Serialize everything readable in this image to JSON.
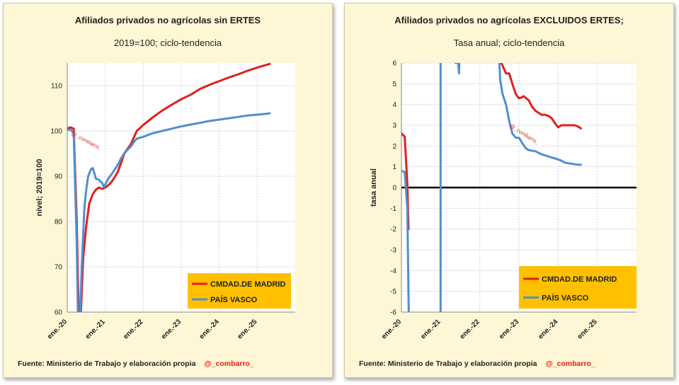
{
  "colors": {
    "madrid": "#e0201a",
    "pais_vasco": "#4f8fd0",
    "legend_bg": "#ffc000",
    "panel_bg": "#fef6d5",
    "grid": "#e6e6e6"
  },
  "source_text": "Fuente: Ministerio de Trabajo y elaboración propia",
  "source_handle": "@_combarro_",
  "chart_data": [
    {
      "type": "line",
      "title": "Afiliados privados no agrícolas sin ERTES",
      "subtitle": "2019=100; ciclo-tendencia",
      "xlabel": "",
      "ylabel": "nivel;  2019=100",
      "xlim": [
        2020.0,
        2026.0
      ],
      "ylim": [
        60,
        115
      ],
      "yticks": [
        60,
        70,
        80,
        90,
        100,
        110
      ],
      "xticks": [
        {
          "label": "ene.-20",
          "x": 2020.0
        },
        {
          "label": "ene.-21",
          "x": 2021.0
        },
        {
          "label": "ene.-22",
          "x": 2022.0
        },
        {
          "label": "ene.-23",
          "x": 2023.0
        },
        {
          "label": "ene.-24",
          "x": 2024.0
        },
        {
          "label": "ene.-25",
          "x": 2025.0
        }
      ],
      "watermark": "@_combarro_",
      "legend_position": "bottom-right",
      "series": [
        {
          "name": "CMDAD.DE MADRID",
          "color": "#e0201a",
          "points": [
            [
              2020.0,
              100.5
            ],
            [
              2020.083,
              100.8
            ],
            [
              2020.17,
              100.5
            ],
            [
              2020.25,
              80
            ],
            [
              2020.3,
              60
            ],
            [
              2020.33,
              55
            ],
            [
              2020.36,
              60
            ],
            [
              2020.42,
              72
            ],
            [
              2020.5,
              79
            ],
            [
              2020.58,
              84
            ],
            [
              2020.67,
              86
            ],
            [
              2020.75,
              87
            ],
            [
              2020.83,
              87.5
            ],
            [
              2020.92,
              87.2
            ],
            [
              2021.0,
              87.5
            ],
            [
              2021.08,
              88
            ],
            [
              2021.17,
              88.8
            ],
            [
              2021.25,
              89.8
            ],
            [
              2021.33,
              91
            ],
            [
              2021.42,
              93
            ],
            [
              2021.5,
              95
            ],
            [
              2021.58,
              96
            ],
            [
              2021.67,
              97
            ],
            [
              2021.75,
              98.5
            ],
            [
              2021.83,
              100
            ],
            [
              2022.0,
              101.3
            ],
            [
              2022.25,
              103
            ],
            [
              2022.5,
              104.5
            ],
            [
              2022.75,
              105.8
            ],
            [
              2023.0,
              107
            ],
            [
              2023.25,
              108
            ],
            [
              2023.5,
              109.3
            ],
            [
              2023.75,
              110.2
            ],
            [
              2024.0,
              111
            ],
            [
              2024.25,
              111.8
            ],
            [
              2024.5,
              112.5
            ],
            [
              2024.75,
              113.3
            ],
            [
              2025.0,
              114
            ],
            [
              2025.25,
              114.6
            ],
            [
              2025.33,
              114.8
            ]
          ]
        },
        {
          "name": "PAÍS VASCO",
          "color": "#4f8fd0",
          "points": [
            [
              2020.0,
              100.2
            ],
            [
              2020.083,
              100.3
            ],
            [
              2020.17,
              99.5
            ],
            [
              2020.25,
              75
            ],
            [
              2020.28,
              60
            ],
            [
              2020.3,
              55
            ],
            [
              2020.33,
              56
            ],
            [
              2020.38,
              70
            ],
            [
              2020.45,
              83
            ],
            [
              2020.5,
              87
            ],
            [
              2020.55,
              90
            ],
            [
              2020.62,
              91.5
            ],
            [
              2020.67,
              91.8
            ],
            [
              2020.72,
              90.5
            ],
            [
              2020.75,
              89.5
            ],
            [
              2020.83,
              89.2
            ],
            [
              2020.92,
              88.5
            ],
            [
              2020.96,
              87.6
            ],
            [
              2021.0,
              88.2
            ],
            [
              2021.08,
              89.5
            ],
            [
              2021.17,
              90.5
            ],
            [
              2021.25,
              91.5
            ],
            [
              2021.33,
              92.5
            ],
            [
              2021.42,
              94
            ],
            [
              2021.5,
              95
            ],
            [
              2021.58,
              95.8
            ],
            [
              2021.67,
              96.5
            ],
            [
              2021.75,
              97.5
            ],
            [
              2021.83,
              98.3
            ],
            [
              2022.0,
              98.7
            ],
            [
              2022.25,
              99.5
            ],
            [
              2022.5,
              100
            ],
            [
              2022.75,
              100.5
            ],
            [
              2023.0,
              101
            ],
            [
              2023.25,
              101.4
            ],
            [
              2023.5,
              101.8
            ],
            [
              2023.75,
              102.2
            ],
            [
              2024.0,
              102.5
            ],
            [
              2024.25,
              102.8
            ],
            [
              2024.5,
              103.1
            ],
            [
              2024.75,
              103.4
            ],
            [
              2025.0,
              103.6
            ],
            [
              2025.25,
              103.8
            ],
            [
              2025.33,
              103.9
            ]
          ]
        }
      ]
    },
    {
      "type": "line",
      "title": "Afiliados privados no agrícolas EXCLUIDOS ERTES;",
      "subtitle": "Tasa anual; ciclo-tendencia",
      "xlabel": "",
      "ylabel": "tasa anual",
      "xlim": [
        2020.0,
        2026.0
      ],
      "ylim": [
        -6,
        6
      ],
      "yticks": [
        -6,
        -5,
        -4,
        -3,
        -2,
        -1,
        0,
        1,
        2,
        3,
        4,
        5,
        6
      ],
      "xticks": [
        {
          "label": "ene.-20",
          "x": 2020.0
        },
        {
          "label": "ene.-21",
          "x": 2021.0
        },
        {
          "label": "ene.-22",
          "x": 2022.0
        },
        {
          "label": "ene.-23",
          "x": 2023.0
        },
        {
          "label": "ene.-24",
          "x": 2024.0
        },
        {
          "label": "ene.-25",
          "x": 2025.0
        }
      ],
      "watermark": "@_combarro_",
      "legend_position": "bottom-right",
      "series": [
        {
          "name": "CMDAD.DE MADRID",
          "color": "#e0201a",
          "segments": [
            [
              [
                2020.0,
                2.6
              ],
              [
                2020.083,
                2.45
              ],
              [
                2020.15,
                0.2
              ],
              [
                2020.18,
                -2
              ]
            ],
            [
              [
                2022.48,
                8
              ],
              [
                2022.55,
                6
              ],
              [
                2022.67,
                5.5
              ],
              [
                2022.75,
                5.5
              ],
              [
                2022.83,
                5
              ],
              [
                2022.92,
                4.5
              ],
              [
                2023.0,
                4.3
              ],
              [
                2023.08,
                4.35
              ],
              [
                2023.12,
                4.4
              ],
              [
                2023.25,
                4.2
              ],
              [
                2023.33,
                3.9
              ],
              [
                2023.42,
                3.7
              ],
              [
                2023.5,
                3.6
              ],
              [
                2023.58,
                3.5
              ],
              [
                2023.67,
                3.5
              ],
              [
                2023.75,
                3.45
              ],
              [
                2023.83,
                3.35
              ],
              [
                2023.92,
                3.1
              ],
              [
                2024.0,
                2.9
              ],
              [
                2024.08,
                3.0
              ],
              [
                2024.25,
                3.0
              ],
              [
                2024.42,
                3.0
              ],
              [
                2024.5,
                2.95
              ],
              [
                2024.58,
                2.85
              ]
            ]
          ]
        },
        {
          "name": "PAÍS VASCO",
          "color": "#4f8fd0",
          "segments": [
            [
              [
                2020.0,
                0.8
              ],
              [
                2020.083,
                0.75
              ],
              [
                2020.15,
                -1
              ],
              [
                2020.2,
                -8
              ]
            ],
            [
              [
                2021.0,
                -8
              ],
              [
                2021.0,
                8
              ]
            ],
            [
              [
                2021.36,
                8
              ],
              [
                2021.38,
                6
              ],
              [
                2021.45,
                6
              ],
              [
                2021.47,
                5.5
              ],
              [
                2021.5,
                8
              ]
            ],
            [
              [
                2022.48,
                8
              ],
              [
                2022.5,
                6
              ],
              [
                2022.52,
                5.2
              ],
              [
                2022.58,
                4.5
              ],
              [
                2022.67,
                4
              ],
              [
                2022.75,
                3.2
              ],
              [
                2022.83,
                2.6
              ],
              [
                2022.92,
                2.4
              ],
              [
                2023.0,
                2.4
              ],
              [
                2023.08,
                2.15
              ],
              [
                2023.17,
                1.9
              ],
              [
                2023.25,
                1.8
              ],
              [
                2023.42,
                1.75
              ],
              [
                2023.58,
                1.6
              ],
              [
                2023.75,
                1.5
              ],
              [
                2023.83,
                1.45
              ],
              [
                2023.92,
                1.4
              ],
              [
                2024.0,
                1.35
              ],
              [
                2024.08,
                1.3
              ],
              [
                2024.17,
                1.2
              ],
              [
                2024.33,
                1.15
              ],
              [
                2024.5,
                1.1
              ],
              [
                2024.58,
                1.1
              ]
            ]
          ]
        }
      ]
    }
  ]
}
